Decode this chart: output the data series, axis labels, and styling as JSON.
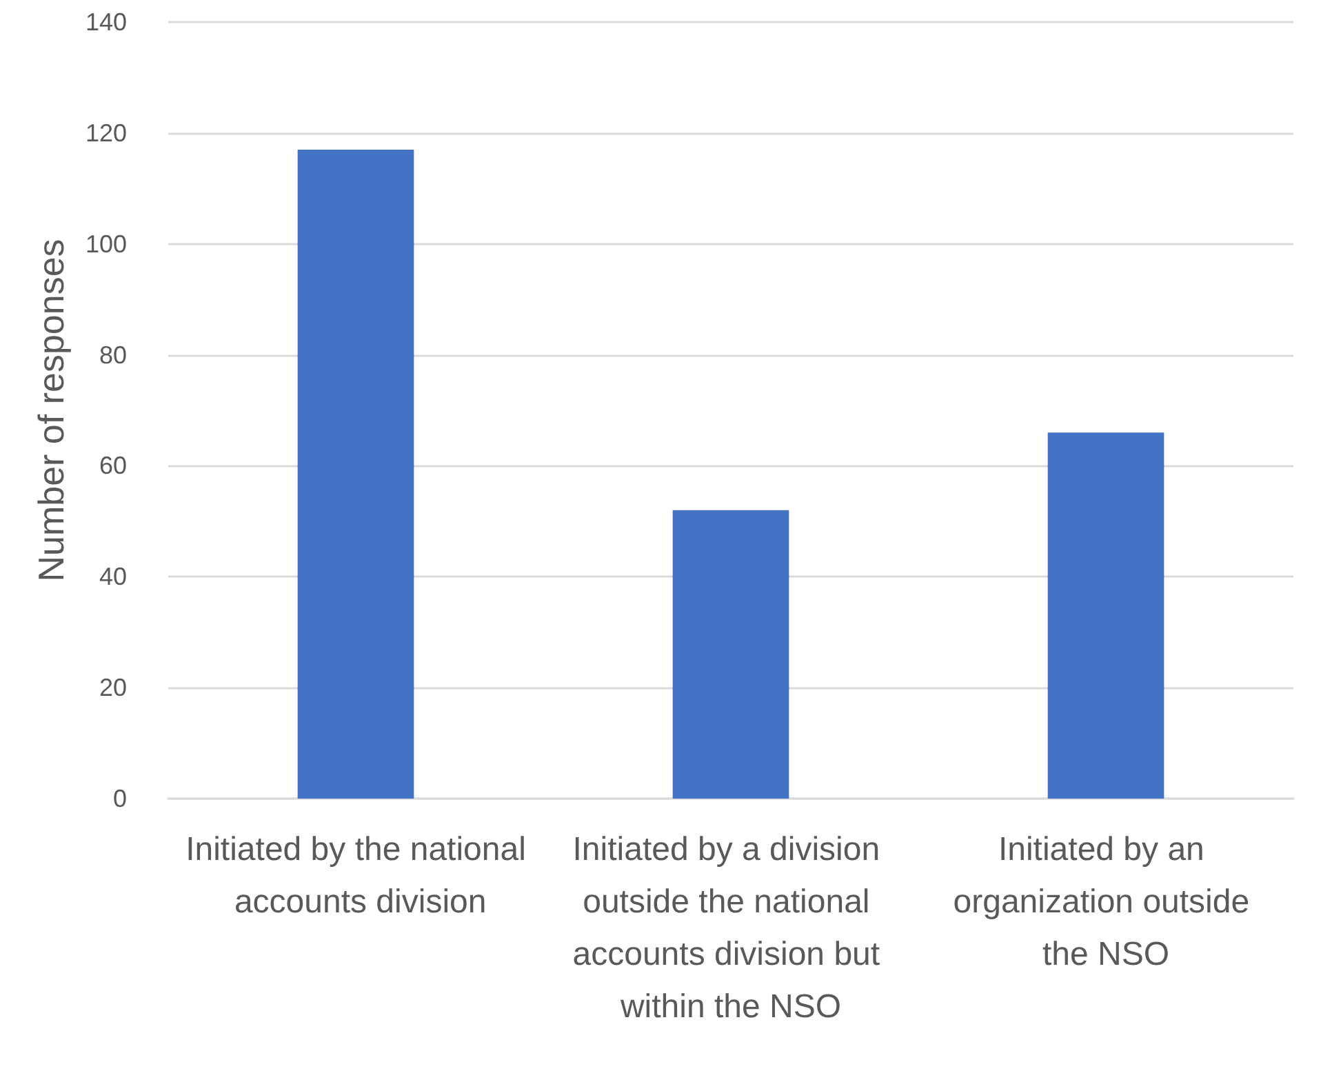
{
  "chart_data": {
    "type": "bar",
    "ylabel": "Number of responses",
    "categories": [
      "Initiated by the national accounts division",
      "Initiated by a division outside the national accounts division but within the NSO",
      "Initiated by an organization outside the NSO"
    ],
    "values": [
      117,
      52,
      66
    ],
    "color": "#4472c4",
    "ylim": [
      0,
      140
    ],
    "yticks": [
      0,
      20,
      40,
      60,
      80,
      100,
      120,
      140
    ],
    "grid": "y"
  }
}
